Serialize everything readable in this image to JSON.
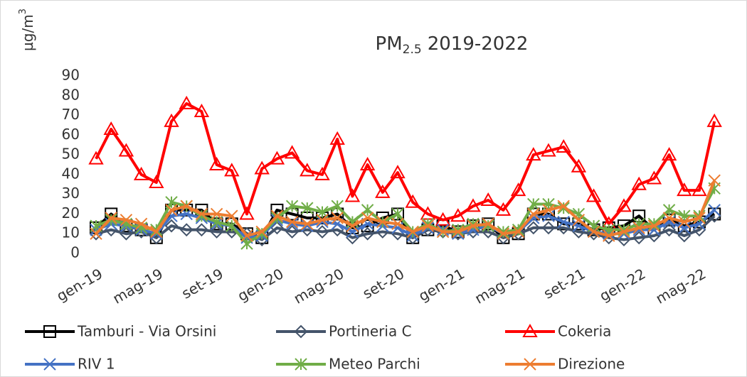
{
  "chart_data": {
    "type": "line",
    "title": [
      "PM",
      "2.5",
      "2019-2022"
    ],
    "y_label": [
      "µg/m",
      "3"
    ],
    "categories": [
      "gen-19",
      null,
      null,
      null,
      "mag-19",
      null,
      null,
      null,
      "set-19",
      null,
      null,
      null,
      "gen-20",
      null,
      null,
      null,
      "mag-20",
      null,
      null,
      null,
      "set-20",
      null,
      null,
      null,
      "gen-21",
      null,
      null,
      null,
      "mag-21",
      null,
      null,
      null,
      "set-21",
      null,
      null,
      null,
      "gen-22",
      null,
      null,
      null,
      "mag-22",
      null
    ],
    "ylim": [
      0,
      90
    ],
    "yticks": [
      0,
      10,
      20,
      30,
      40,
      50,
      60,
      70,
      80,
      90
    ],
    "grid": false,
    "legend": "bottom",
    "series": [
      {
        "name": "Tamburi - Via Orsini",
        "color": "#000000",
        "marker": "square",
        "values": [
          13,
          20,
          14,
          12,
          8,
          22,
          22,
          22,
          15,
          15,
          10,
          8,
          22,
          20,
          18,
          18,
          20,
          13,
          14,
          18,
          20,
          8,
          12,
          14,
          11,
          14,
          15,
          8,
          10,
          20,
          20,
          15,
          15,
          12,
          13,
          14,
          19,
          12,
          17,
          14,
          16,
          20
        ]
      },
      {
        "name": "Portineria C",
        "color": "#44546a",
        "marker": "diamond",
        "values": [
          10,
          12,
          10,
          11,
          8,
          14,
          12,
          12,
          11,
          11,
          10,
          7,
          13,
          11,
          12,
          11,
          12,
          8,
          10,
          11,
          10,
          8,
          12,
          11,
          10,
          11,
          11,
          8,
          10,
          13,
          13,
          13,
          11,
          10,
          8,
          7,
          8,
          9,
          12,
          9,
          12,
          19
        ]
      },
      {
        "name": "Cokeria",
        "color": "#ff0000",
        "marker": "triangle",
        "values": [
          48,
          63,
          52,
          40,
          36,
          67,
          76,
          72,
          45,
          42,
          20,
          43,
          48,
          51,
          42,
          40,
          58,
          29,
          45,
          31,
          41,
          26,
          20,
          17,
          19,
          24,
          27,
          22,
          32,
          50,
          52,
          54,
          44,
          29,
          15,
          24,
          35,
          38,
          50,
          32,
          32,
          67
        ]
      },
      {
        "name": "RIV 1",
        "color": "#4472c4",
        "marker": "x",
        "values": [
          12,
          15,
          14,
          12,
          10,
          19,
          20,
          18,
          15,
          14,
          8,
          9,
          17,
          15,
          14,
          16,
          15,
          11,
          15,
          14,
          13,
          9,
          13,
          12,
          10,
          12,
          14,
          10,
          11,
          18,
          19,
          16,
          14,
          11,
          10,
          10,
          12,
          12,
          16,
          13,
          15,
          22
        ]
      },
      {
        "name": "Meteo Parchi",
        "color": "#70ad47",
        "marker": "star",
        "values": [
          14,
          17,
          15,
          13,
          12,
          26,
          24,
          19,
          16,
          14,
          5,
          10,
          18,
          24,
          23,
          21,
          24,
          16,
          22,
          16,
          20,
          11,
          15,
          11,
          12,
          15,
          14,
          11,
          12,
          25,
          25,
          23,
          20,
          14,
          12,
          12,
          15,
          15,
          22,
          19,
          19,
          33
        ]
      },
      {
        "name": "Direzione",
        "color": "#ed7d31",
        "marker": "x",
        "values": [
          10,
          18,
          17,
          15,
          11,
          22,
          24,
          20,
          20,
          19,
          9,
          11,
          19,
          16,
          15,
          17,
          18,
          14,
          18,
          16,
          15,
          11,
          14,
          11,
          11,
          14,
          15,
          10,
          11,
          20,
          22,
          24,
          17,
          11,
          9,
          11,
          13,
          14,
          18,
          16,
          18,
          37
        ]
      }
    ]
  }
}
